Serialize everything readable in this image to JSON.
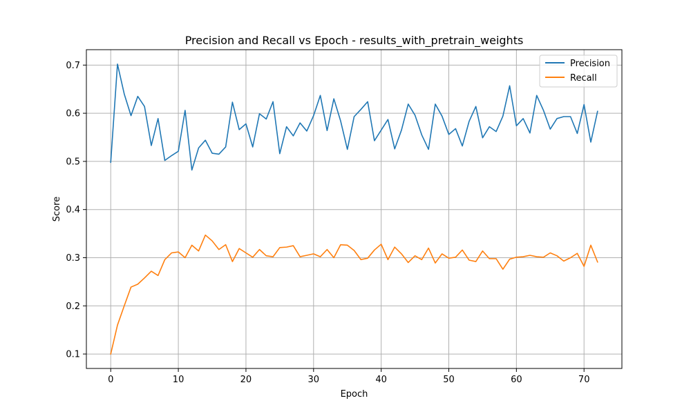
{
  "chart_data": {
    "type": "line",
    "title": "Precision and Recall vs Epoch - results_with_pretrain_weights",
    "xlabel": "Epoch",
    "ylabel": "Score",
    "xlim": [
      -3.6,
      75.6
    ],
    "ylim": [
      0.07,
      0.732
    ],
    "xticks": [
      0,
      10,
      20,
      30,
      40,
      50,
      60,
      70
    ],
    "yticks": [
      0.1,
      0.2,
      0.3,
      0.4,
      0.5,
      0.6,
      0.7
    ],
    "xtick_labels": [
      "0",
      "10",
      "20",
      "30",
      "40",
      "50",
      "60",
      "70"
    ],
    "ytick_labels": [
      "0.1",
      "0.2",
      "0.3",
      "0.4",
      "0.5",
      "0.6",
      "0.7"
    ],
    "grid": true,
    "legend_position": "top-right",
    "series": [
      {
        "name": "Precision",
        "color": "#1f77b4",
        "values": [
          0.498,
          0.702,
          0.64,
          0.595,
          0.635,
          0.614,
          0.533,
          0.589,
          0.502,
          0.512,
          0.521,
          0.606,
          0.482,
          0.528,
          0.544,
          0.517,
          0.515,
          0.53,
          0.623,
          0.566,
          0.578,
          0.53,
          0.599,
          0.588,
          0.624,
          0.516,
          0.572,
          0.553,
          0.58,
          0.563,
          0.595,
          0.637,
          0.564,
          0.63,
          0.584,
          0.525,
          0.593,
          0.608,
          0.624,
          0.543,
          0.565,
          0.587,
          0.526,
          0.565,
          0.619,
          0.596,
          0.555,
          0.525,
          0.619,
          0.594,
          0.556,
          0.568,
          0.532,
          0.583,
          0.614,
          0.549,
          0.572,
          0.562,
          0.594,
          0.657,
          0.574,
          0.589,
          0.559,
          0.637,
          0.606,
          0.567,
          0.589,
          0.593,
          0.593,
          0.558,
          0.618,
          0.54,
          0.604
        ]
      },
      {
        "name": "Recall",
        "color": "#ff7f0e",
        "values": [
          0.1,
          0.16,
          0.2,
          0.239,
          0.245,
          0.258,
          0.272,
          0.263,
          0.296,
          0.31,
          0.312,
          0.3,
          0.326,
          0.314,
          0.347,
          0.335,
          0.317,
          0.327,
          0.292,
          0.319,
          0.31,
          0.301,
          0.317,
          0.304,
          0.302,
          0.321,
          0.322,
          0.325,
          0.302,
          0.305,
          0.308,
          0.302,
          0.317,
          0.3,
          0.327,
          0.326,
          0.315,
          0.296,
          0.299,
          0.316,
          0.328,
          0.296,
          0.322,
          0.308,
          0.29,
          0.304,
          0.296,
          0.32,
          0.289,
          0.308,
          0.299,
          0.301,
          0.316,
          0.295,
          0.292,
          0.314,
          0.298,
          0.298,
          0.276,
          0.297,
          0.301,
          0.302,
          0.305,
          0.302,
          0.301,
          0.31,
          0.304,
          0.293,
          0.3,
          0.309,
          0.282,
          0.326,
          0.291
        ]
      }
    ]
  }
}
